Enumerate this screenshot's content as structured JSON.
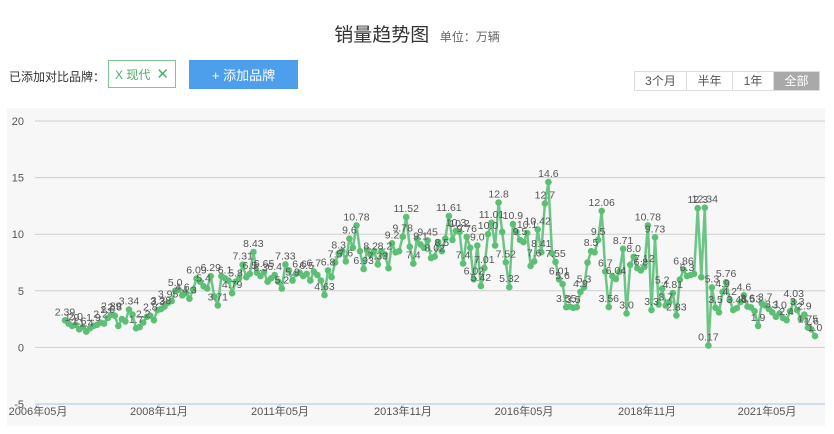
{
  "header": {
    "title": "销量趋势图",
    "unit": "单位：万辆"
  },
  "brands": {
    "label": "已添加对比品牌：",
    "selected": [
      {
        "name": "X 现代",
        "remove_icon": "close-icon"
      }
    ],
    "add_label": "+ 添加品牌"
  },
  "range": {
    "options": [
      "3个月",
      "半年",
      "1年",
      "全部"
    ],
    "active": "全部"
  },
  "colors": {
    "line": "#6cc586",
    "point": "#5dbf76",
    "grid": "#cfcfcf",
    "axis": "#a9c6e8"
  },
  "chart_data": {
    "type": "line",
    "x_start": "2006-08",
    "x_step": "1 month",
    "ylim": [
      -5,
      20
    ],
    "y_ticks": [
      "20",
      "15",
      "10",
      "5",
      "0",
      "-5"
    ],
    "x_ticks": [
      "2006年05月",
      "2008年11月",
      "2011年05月",
      "2013年11月",
      "2016年05月",
      "2018年11月",
      "2021年05月"
    ],
    "grid": true,
    "series": [
      {
        "values": [
          2.39,
          2.1,
          1.9,
          2.0,
          1.6,
          1.8,
          1.4,
          1.7,
          1.9,
          2.0,
          2.2,
          2.1,
          2.6,
          2.89,
          2.8,
          1.9,
          2.5,
          2.3,
          3.34,
          2.9,
          1.7,
          1.8,
          2.2,
          2.7,
          2.8,
          2.4,
          3.3,
          3.38,
          3.6,
          3.95,
          4.1,
          5.0,
          5.1,
          4.6,
          4.8,
          4.3,
          5.1,
          6.09,
          5.8,
          5.4,
          5.2,
          6.29,
          4.5,
          3.71,
          6.3,
          6.1,
          5.9,
          4.79,
          5.8,
          6.1,
          7.31,
          6.2,
          6.5,
          8.43,
          6.6,
          6.3,
          6.65,
          5.8,
          6.1,
          6.4,
          5.8,
          5.2,
          7.33,
          6.8,
          5.9,
          6.5,
          6.6,
          6.3,
          6.5,
          5.9,
          6.7,
          6.4,
          5.9,
          4.63,
          6.8,
          6.2,
          7.5,
          8.3,
          8.5,
          7.6,
          9.6,
          8.8,
          10.78,
          8.5,
          6.93,
          8.6,
          8.2,
          8.5,
          7.33,
          8.5,
          8.2,
          7.0,
          9.2,
          8.4,
          8.5,
          9.78,
          11.52,
          8.9,
          7.4,
          9.6,
          9.1,
          8.8,
          9.45,
          7.9,
          8.02,
          9.3,
          8.5,
          9.6,
          11.61,
          9.5,
          10.3,
          10.2,
          7.4,
          9.76,
          8.8,
          6.02,
          9.0,
          5.42,
          7.01,
          10.0,
          11.01,
          9.0,
          12.8,
          10.2,
          7.52,
          5.32,
          10.9,
          10.2,
          9.5,
          9.3,
          10.1,
          7.2,
          7.6,
          10.42,
          8.41,
          12.7,
          14.6,
          8.3,
          7.55,
          6.01,
          5.6,
          3.55,
          3.6,
          3.5,
          3.55,
          4.9,
          5.3,
          7.5,
          8.5,
          8.4,
          9.5,
          12.06,
          6.7,
          3.56,
          6.3,
          6.04,
          6.7,
          8.71,
          3.0,
          7.3,
          8.0,
          7.0,
          6.8,
          7.12,
          10.78,
          3.3,
          9.73,
          3.8,
          5.2,
          3.7,
          4.0,
          4.81,
          2.83,
          6.0,
          6.86,
          6.3,
          6.4,
          6.5,
          12.3,
          6.2,
          12.34,
          0.17,
          5.3,
          3.5,
          3.1,
          4.9,
          5.76,
          4.2,
          3.3,
          3.46,
          4.0,
          4.6,
          3.6,
          3.53,
          3.2,
          1.9,
          3.9,
          3.7,
          3.4,
          3.1,
          2.7,
          3.0,
          2.6,
          2.4,
          3.2,
          4.03,
          3.3,
          2.5,
          2.9,
          1.75,
          1.6,
          1.0
        ]
      }
    ],
    "point_labels": [
      {
        "i": 0,
        "text": "2.39"
      },
      {
        "i": 2,
        "text": "1.9"
      },
      {
        "i": 3,
        "text": "2.0"
      },
      {
        "i": 4,
        "text": "1.6"
      },
      {
        "i": 6,
        "text": "1.4"
      },
      {
        "i": 8,
        "text": "1.9"
      },
      {
        "i": 10,
        "text": "2.2"
      },
      {
        "i": 12,
        "text": "2.6"
      },
      {
        "i": 13,
        "text": "2.89"
      },
      {
        "i": 14,
        "text": "2.8"
      },
      {
        "i": 18,
        "text": "3.34"
      },
      {
        "i": 20,
        "text": "1.7"
      },
      {
        "i": 22,
        "text": "2.2"
      },
      {
        "i": 24,
        "text": "2.8"
      },
      {
        "i": 26,
        "text": "3.3"
      },
      {
        "i": 27,
        "text": "3.38"
      },
      {
        "i": 29,
        "text": "3.95"
      },
      {
        "i": 31,
        "text": "5.0"
      },
      {
        "i": 33,
        "text": "4.6"
      },
      {
        "i": 35,
        "text": "4.3"
      },
      {
        "i": 37,
        "text": "6.09"
      },
      {
        "i": 39,
        "text": "5.4"
      },
      {
        "i": 41,
        "text": "6.29"
      },
      {
        "i": 43,
        "text": "3.71"
      },
      {
        "i": 45,
        "text": "6.1"
      },
      {
        "i": 47,
        "text": "4.79"
      },
      {
        "i": 48,
        "text": "5.8"
      },
      {
        "i": 50,
        "text": "7.31"
      },
      {
        "i": 52,
        "text": "6.5"
      },
      {
        "i": 53,
        "text": "8.43"
      },
      {
        "i": 55,
        "text": "6.3"
      },
      {
        "i": 56,
        "text": "6.65"
      },
      {
        "i": 59,
        "text": "6.4"
      },
      {
        "i": 61,
        "text": "5.2"
      },
      {
        "i": 62,
        "text": "7.33"
      },
      {
        "i": 64,
        "text": "5.9"
      },
      {
        "i": 66,
        "text": "6.6"
      },
      {
        "i": 68,
        "text": "6.5"
      },
      {
        "i": 70,
        "text": "6.7"
      },
      {
        "i": 73,
        "text": "4.63"
      },
      {
        "i": 74,
        "text": "6.8"
      },
      {
        "i": 76,
        "text": "7.5"
      },
      {
        "i": 77,
        "text": "8.3"
      },
      {
        "i": 79,
        "text": "7.6"
      },
      {
        "i": 80,
        "text": "9.6"
      },
      {
        "i": 82,
        "text": "10.78"
      },
      {
        "i": 84,
        "text": "6.93"
      },
      {
        "i": 86,
        "text": "8.2"
      },
      {
        "i": 88,
        "text": "7.33"
      },
      {
        "i": 90,
        "text": "8.2"
      },
      {
        "i": 92,
        "text": "9.2"
      },
      {
        "i": 95,
        "text": "9.78"
      },
      {
        "i": 96,
        "text": "11.52"
      },
      {
        "i": 98,
        "text": "7.4"
      },
      {
        "i": 100,
        "text": "9.1"
      },
      {
        "i": 102,
        "text": "9.45"
      },
      {
        "i": 104,
        "text": "8.02"
      },
      {
        "i": 106,
        "text": "8.5"
      },
      {
        "i": 108,
        "text": "11.61"
      },
      {
        "i": 110,
        "text": "10.3"
      },
      {
        "i": 111,
        "text": "10.2"
      },
      {
        "i": 112,
        "text": "7.4"
      },
      {
        "i": 113,
        "text": "9.76"
      },
      {
        "i": 115,
        "text": "6.02"
      },
      {
        "i": 116,
        "text": "9.0"
      },
      {
        "i": 117,
        "text": "5.42"
      },
      {
        "i": 118,
        "text": "7.01"
      },
      {
        "i": 119,
        "text": "10.0"
      },
      {
        "i": 120,
        "text": "11.01"
      },
      {
        "i": 122,
        "text": "12.8"
      },
      {
        "i": 124,
        "text": "7.52"
      },
      {
        "i": 125,
        "text": "5.32"
      },
      {
        "i": 126,
        "text": "10.9"
      },
      {
        "i": 128,
        "text": "9.5"
      },
      {
        "i": 130,
        "text": "10.1"
      },
      {
        "i": 132,
        "text": "7.6"
      },
      {
        "i": 133,
        "text": "10.42"
      },
      {
        "i": 134,
        "text": "8.41"
      },
      {
        "i": 135,
        "text": "12.7"
      },
      {
        "i": 136,
        "text": "14.6"
      },
      {
        "i": 138,
        "text": "7.55"
      },
      {
        "i": 139,
        "text": "6.01"
      },
      {
        "i": 140,
        "text": "5.6"
      },
      {
        "i": 141,
        "text": "3.55"
      },
      {
        "i": 143,
        "text": "3.5"
      },
      {
        "i": 145,
        "text": "4.9"
      },
      {
        "i": 146,
        "text": "5.3"
      },
      {
        "i": 148,
        "text": "8.5"
      },
      {
        "i": 150,
        "text": "9.5"
      },
      {
        "i": 151,
        "text": "12.06"
      },
      {
        "i": 152,
        "text": "6.7"
      },
      {
        "i": 153,
        "text": "3.56"
      },
      {
        "i": 155,
        "text": "6.04"
      },
      {
        "i": 157,
        "text": "8.71"
      },
      {
        "i": 158,
        "text": "3.0"
      },
      {
        "i": 160,
        "text": "8.0"
      },
      {
        "i": 162,
        "text": "6.8"
      },
      {
        "i": 163,
        "text": "7.12"
      },
      {
        "i": 164,
        "text": "10.78"
      },
      {
        "i": 165,
        "text": "3.3"
      },
      {
        "i": 166,
        "text": "9.73"
      },
      {
        "i": 168,
        "text": "5.2"
      },
      {
        "i": 169,
        "text": "3.7"
      },
      {
        "i": 171,
        "text": "4.81"
      },
      {
        "i": 172,
        "text": "2.83"
      },
      {
        "i": 174,
        "text": "6.86"
      },
      {
        "i": 175,
        "text": "6.3"
      },
      {
        "i": 178,
        "text": "12.3"
      },
      {
        "i": 180,
        "text": "12.34"
      },
      {
        "i": 181,
        "text": "0.17"
      },
      {
        "i": 182,
        "text": "5.3"
      },
      {
        "i": 183,
        "text": "3.5"
      },
      {
        "i": 185,
        "text": "4.9"
      },
      {
        "i": 186,
        "text": "5.76"
      },
      {
        "i": 187,
        "text": "4.2"
      },
      {
        "i": 189,
        "text": "3.46"
      },
      {
        "i": 191,
        "text": "4.6"
      },
      {
        "i": 192,
        "text": "3.6"
      },
      {
        "i": 193,
        "text": "3.53"
      },
      {
        "i": 195,
        "text": "1.9"
      },
      {
        "i": 197,
        "text": "3.7"
      },
      {
        "i": 199,
        "text": "3.1"
      },
      {
        "i": 201,
        "text": "3.0"
      },
      {
        "i": 203,
        "text": "2.4"
      },
      {
        "i": 205,
        "text": "4.03"
      },
      {
        "i": 206,
        "text": "3.3"
      },
      {
        "i": 208,
        "text": "2.9"
      },
      {
        "i": 209,
        "text": "1.75"
      },
      {
        "i": 210,
        "text": "1.6"
      },
      {
        "i": 211,
        "text": "1.0"
      }
    ]
  }
}
